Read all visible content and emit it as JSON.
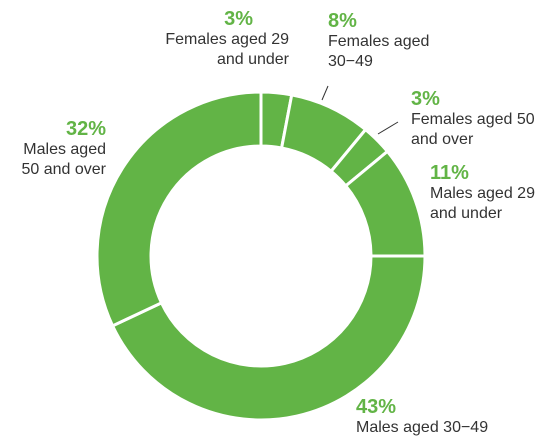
{
  "chart_data": {
    "type": "donut",
    "categories": [
      "Females aged 29 and under",
      "Females aged 30−49",
      "Females aged 50 and over",
      "Males aged 29 and under",
      "Males aged 30−49",
      "Males aged 50 and over"
    ],
    "values": [
      3,
      8,
      3,
      11,
      43,
      32
    ],
    "value_labels": [
      "3%",
      "8%",
      "3%",
      "11%",
      "43%",
      "32%"
    ],
    "color": "#62b446"
  }
}
